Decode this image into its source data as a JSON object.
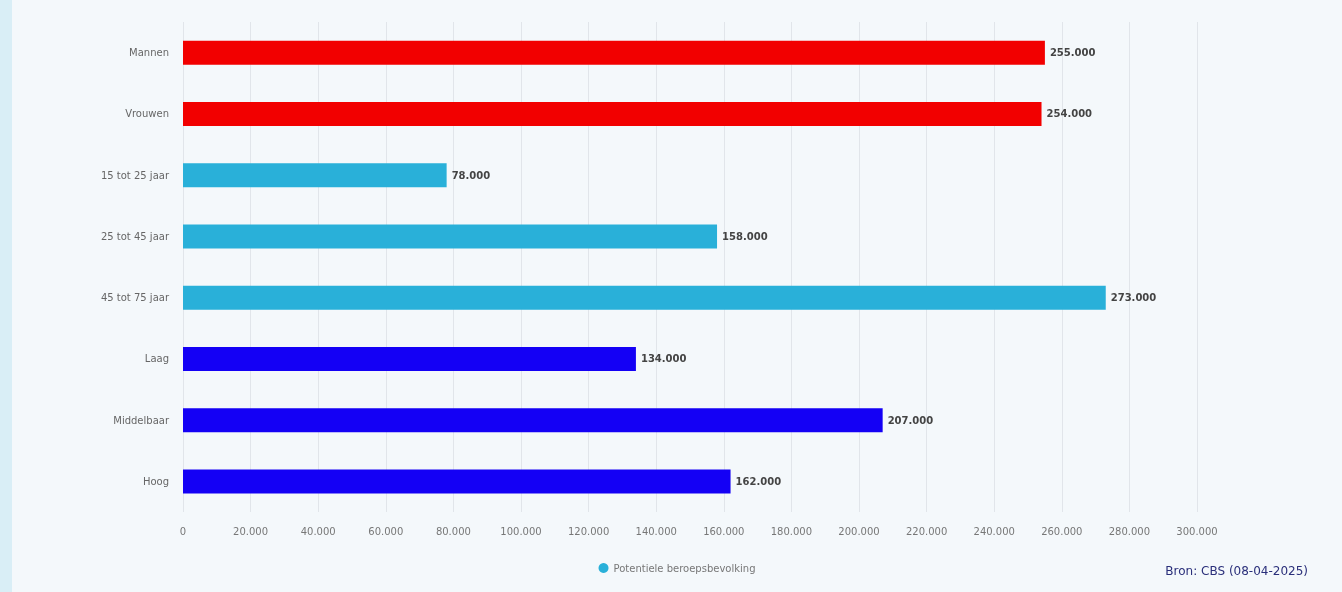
{
  "chart_data": {
    "type": "bar",
    "orientation": "horizontal",
    "categories": [
      "Mannen",
      "Vrouwen",
      "15 tot 25 jaar",
      "25 tot 45 jaar",
      "45 tot 75 jaar",
      "Laag",
      "Middelbaar",
      "Hoog"
    ],
    "series": [
      {
        "name": "Potentiele beroepsbevolking",
        "color": "#29b0d9",
        "values": [
          255000,
          254000,
          78000,
          158000,
          273000,
          134000,
          207000,
          162000
        ],
        "colors": [
          "#f20000",
          "#f20000",
          "#29b0d9",
          "#29b0d9",
          "#29b0d9",
          "#1400f5",
          "#1400f5",
          "#1400f5"
        ],
        "value_labels": [
          "255.000",
          "254.000",
          "78.000",
          "158.000",
          "273.000",
          "134.000",
          "207.000",
          "162.000"
        ]
      }
    ],
    "xlim": [
      0,
      300000
    ],
    "xticks": [
      0,
      {
        "value": 20000,
        "label": "20.000"
      },
      {
        "value": 40000,
        "label": "40.000"
      },
      {
        "value": 60000,
        "label": "60.000"
      },
      {
        "value": 80000,
        "label": "80.000"
      },
      {
        "value": 100000,
        "label": "100.000"
      },
      {
        "value": 120000,
        "label": "120.000"
      },
      {
        "value": 140000,
        "label": "140.000"
      },
      {
        "value": 160000,
        "label": "160.000"
      },
      {
        "value": 180000,
        "label": "180.000"
      },
      {
        "value": 200000,
        "label": "200.000"
      },
      {
        "value": 220000,
        "label": "220.000"
      },
      {
        "value": 240000,
        "label": "240.000"
      },
      {
        "value": 260000,
        "label": "260.000"
      },
      {
        "value": 280000,
        "label": "280.000"
      },
      {
        "value": 300000,
        "label": "300.000"
      }
    ],
    "grid": "x",
    "legend": "bottom",
    "annotations": [
      "Bron: CBS (08-04-2025)"
    ]
  }
}
